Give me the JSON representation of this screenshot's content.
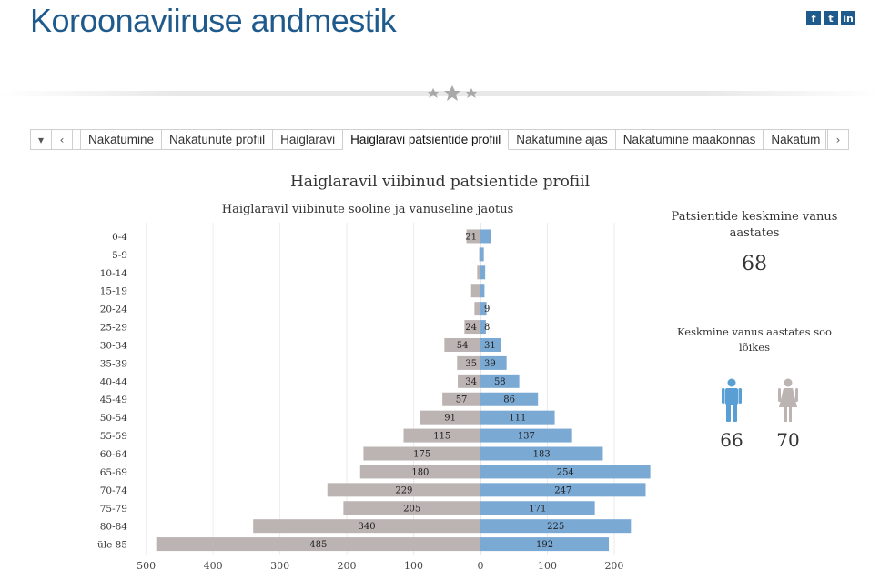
{
  "site": {
    "title": "Koroonaviiruse andmestik"
  },
  "social": [
    {
      "name": "facebook-icon",
      "glyph": "f"
    },
    {
      "name": "twitter-icon",
      "glyph": "t"
    },
    {
      "name": "linkedin-icon",
      "glyph": "in"
    }
  ],
  "tabs": {
    "items": [
      "Nakatumine",
      "Nakatunute profiil",
      "Haiglaravi",
      "Haiglaravi patsientide profiil",
      "Nakatumine ajas",
      "Nakatumine maakonnas",
      "Nakatum"
    ],
    "active_index": 3
  },
  "stats": {
    "avg_age_label": "Patsientide keskmine vanus aastates",
    "avg_age": "68",
    "avg_by_sex_label": "Keskmine vanus aastates soo lõikes",
    "male_avg": "66",
    "female_avg": "70"
  },
  "colors": {
    "female": "#bcb3b3",
    "male": "#7aa9d4",
    "title": "#1f5a8c"
  },
  "chart_data": {
    "type": "bar",
    "orientation": "horizontal-diverging",
    "title": "Haiglaravil viibinud patsientide profiil",
    "subtitle": "Haiglaravil viibinute sooline ja vanuseline jaotus",
    "categories": [
      "0-4",
      "5-9",
      "10-14",
      "15-19",
      "20-24",
      "25-29",
      "30-34",
      "35-39",
      "40-44",
      "45-49",
      "50-54",
      "55-59",
      "60-64",
      "65-69",
      "70-74",
      "75-79",
      "80-84",
      "üle 85"
    ],
    "series": [
      {
        "values": [
          21,
          2,
          5,
          14,
          9,
          24,
          54,
          35,
          34,
          57,
          91,
          115,
          175,
          180,
          229,
          205,
          340,
          485
        ],
        "labels": [
          "21",
          "",
          "",
          "",
          "",
          "24",
          "54",
          "35",
          "34",
          "57",
          "91",
          "115",
          "175",
          "180",
          "229",
          "205",
          "340",
          "485"
        ]
      },
      {
        "values": [
          15,
          5,
          7,
          6,
          9,
          8,
          31,
          39,
          58,
          86,
          111,
          137,
          183,
          254,
          247,
          171,
          225,
          192
        ],
        "labels": [
          "",
          "",
          "",
          "",
          "9",
          "8",
          "31",
          "39",
          "58",
          "86",
          "111",
          "137",
          "183",
          "254",
          "247",
          "171",
          "225",
          "192"
        ]
      }
    ],
    "x_ticks": [
      "500",
      "400",
      "300",
      "200",
      "100",
      "0",
      "100",
      "200"
    ],
    "xlim": [
      -500,
      250
    ],
    "grid": true
  }
}
